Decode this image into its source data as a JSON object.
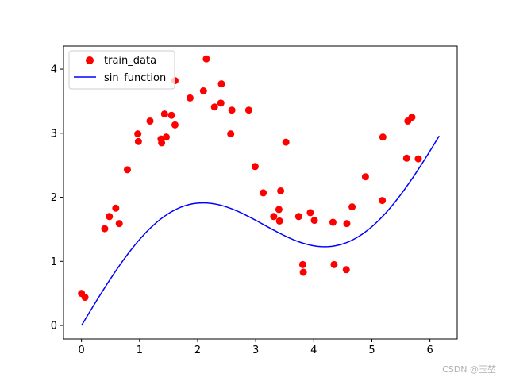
{
  "chart_data": {
    "type": "scatter",
    "title": "",
    "xlabel": "",
    "ylabel": "",
    "xlim": [
      -0.31,
      6.47
    ],
    "ylim": [
      -0.21,
      4.36
    ],
    "x_ticks": [
      0,
      1,
      2,
      3,
      4,
      5,
      6
    ],
    "y_ticks": [
      0,
      1,
      2,
      3,
      4
    ],
    "grid": false,
    "legend_position": "top-left",
    "series": [
      {
        "name": "train_data",
        "kind": "scatter",
        "color": "#ff0000",
        "points": [
          [
            0.0,
            0.5
          ],
          [
            0.06,
            0.44
          ],
          [
            0.4,
            1.51
          ],
          [
            0.48,
            1.7
          ],
          [
            0.59,
            1.83
          ],
          [
            0.65,
            1.59
          ],
          [
            0.79,
            2.43
          ],
          [
            0.97,
            2.99
          ],
          [
            0.98,
            2.87
          ],
          [
            1.18,
            3.19
          ],
          [
            1.37,
            2.91
          ],
          [
            1.38,
            2.85
          ],
          [
            1.43,
            3.3
          ],
          [
            1.46,
            2.94
          ],
          [
            1.55,
            3.28
          ],
          [
            1.61,
            3.13
          ],
          [
            1.61,
            3.82
          ],
          [
            1.87,
            3.55
          ],
          [
            2.1,
            3.66
          ],
          [
            2.15,
            4.16
          ],
          [
            2.29,
            3.41
          ],
          [
            2.4,
            3.47
          ],
          [
            2.41,
            3.77
          ],
          [
            2.57,
            2.99
          ],
          [
            2.59,
            3.36
          ],
          [
            2.88,
            3.36
          ],
          [
            2.99,
            2.48
          ],
          [
            3.13,
            2.07
          ],
          [
            3.31,
            1.7
          ],
          [
            3.4,
            1.81
          ],
          [
            3.41,
            1.63
          ],
          [
            3.43,
            2.1
          ],
          [
            3.52,
            2.86
          ],
          [
            3.74,
            1.7
          ],
          [
            3.81,
            0.95
          ],
          [
            3.82,
            0.83
          ],
          [
            3.94,
            1.76
          ],
          [
            4.01,
            1.64
          ],
          [
            4.33,
            1.61
          ],
          [
            4.35,
            0.95
          ],
          [
            4.56,
            0.87
          ],
          [
            4.57,
            1.59
          ],
          [
            4.66,
            1.85
          ],
          [
            4.89,
            2.32
          ],
          [
            5.18,
            1.95
          ],
          [
            5.19,
            2.94
          ],
          [
            5.6,
            2.61
          ],
          [
            5.62,
            3.19
          ],
          [
            5.69,
            3.25
          ],
          [
            5.8,
            2.6
          ]
        ]
      },
      {
        "name": "sin_function",
        "kind": "line",
        "color": "#0000ff",
        "formula": "sin(x) + 0.5*x",
        "x_range": [
          0,
          6.16
        ],
        "samples": 100
      }
    ]
  },
  "watermark": "CSDN @玉堃"
}
